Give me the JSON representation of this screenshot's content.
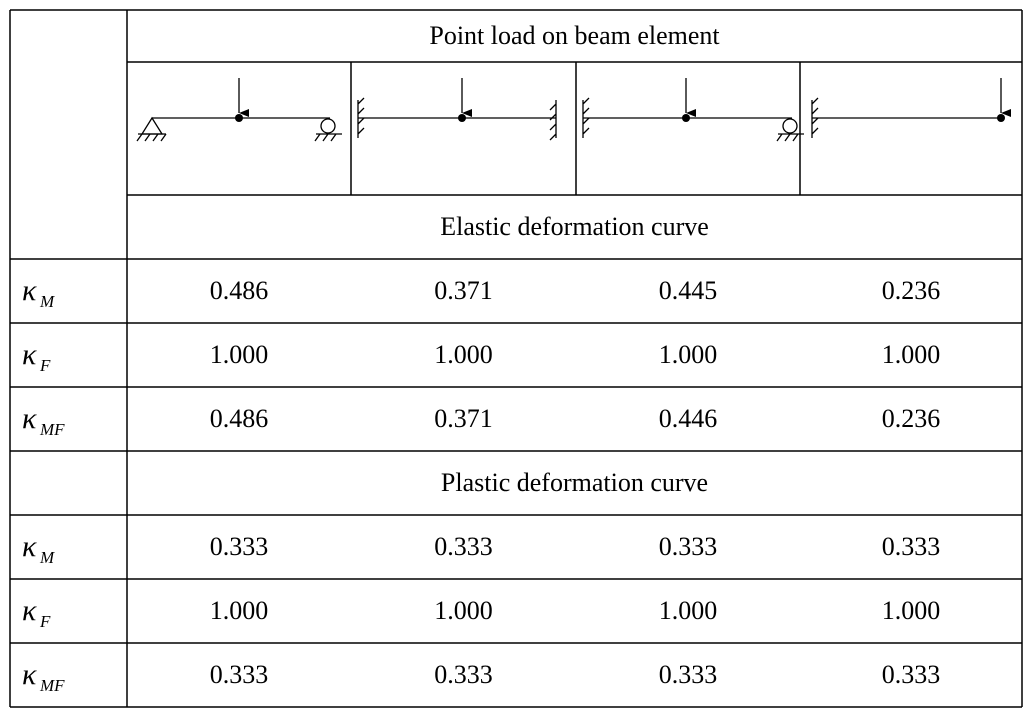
{
  "table": {
    "title": "Point load on beam element",
    "sections": [
      {
        "heading": "Elastic deformation curve",
        "rows": [
          {
            "symbol": "κ",
            "sub": "M",
            "cells": [
              "0.486",
              "0.371",
              "0.445",
              "0.236"
            ]
          },
          {
            "symbol": "κ",
            "sub": "F",
            "cells": [
              "1.000",
              "1.000",
              "1.000",
              "1.000"
            ]
          },
          {
            "symbol": "κ",
            "sub": "MF",
            "cells": [
              "0.486",
              "0.371",
              "0.446",
              "0.236"
            ]
          }
        ]
      },
      {
        "heading": "Plastic deformation curve",
        "rows": [
          {
            "symbol": "κ",
            "sub": "M",
            "cells": [
              "0.333",
              "0.333",
              "0.333",
              "0.333"
            ]
          },
          {
            "symbol": "κ",
            "sub": "F",
            "cells": [
              "1.000",
              "1.000",
              "1.000",
              "1.000"
            ]
          },
          {
            "symbol": "κ",
            "sub": "MF",
            "cells": [
              "0.333",
              "0.333",
              "0.333",
              "0.333"
            ]
          }
        ]
      }
    ]
  }
}
